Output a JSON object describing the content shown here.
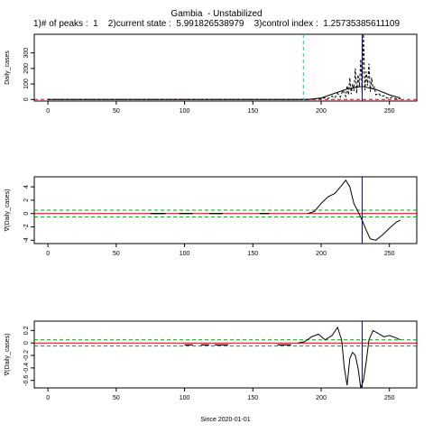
{
  "header": {
    "title": "Gambia  - Unstabilized",
    "subtitle": "1)# of peaks :  1    2)current state :  5.991826538979    3)control index :  1.25735385611109"
  },
  "colors": {
    "axis": "#000000",
    "threshold_cyan": "#00ced1",
    "current_blue": "#00008b",
    "band_green": "#00a000",
    "zero_red": "#d00000",
    "series": "#000000"
  },
  "chart_data": [
    {
      "type": "line",
      "name": "daily-cases",
      "xlabel": "",
      "ylabel": "Daily_cases",
      "xlim": [
        -10,
        270
      ],
      "ylim": [
        -10,
        420
      ],
      "xticks": [
        0,
        50,
        100,
        150,
        200,
        250
      ],
      "yticks": [
        0,
        100,
        200,
        300
      ],
      "vlines": [
        {
          "x": 187,
          "style": "dashed",
          "color": "cyan"
        },
        {
          "x": 230,
          "style": "solid",
          "color": "blue"
        }
      ],
      "hlines": [
        {
          "y": 0,
          "style": "dashed",
          "color": "red"
        }
      ],
      "series": [
        {
          "style": "dashed",
          "x": [
            0,
            100,
            190,
            195,
            198,
            200,
            203,
            205,
            208,
            210,
            212,
            214,
            216,
            218,
            219,
            220,
            221,
            222,
            223,
            224,
            225,
            226,
            227,
            228,
            229,
            230,
            231,
            232,
            233,
            234,
            235,
            236,
            237,
            238,
            239,
            240,
            242,
            244,
            246,
            248,
            250,
            252,
            255,
            258
          ],
          "y": [
            0,
            0,
            0,
            2,
            5,
            3,
            12,
            6,
            22,
            10,
            40,
            15,
            60,
            20,
            90,
            30,
            140,
            35,
            100,
            55,
            200,
            40,
            160,
            80,
            260,
            50,
            420,
            60,
            180,
            90,
            230,
            50,
            140,
            70,
            80,
            30,
            40,
            20,
            25,
            10,
            8,
            15,
            5,
            3
          ]
        },
        {
          "style": "solid",
          "x": [
            0,
            190,
            200,
            210,
            220,
            230,
            240,
            250,
            258
          ],
          "y": [
            0,
            0,
            10,
            40,
            70,
            85,
            65,
            30,
            10
          ]
        }
      ]
    },
    {
      "type": "line",
      "name": "first-derivative",
      "xlabel": "",
      "ylabel": "∇(Daily_cases)",
      "xlim": [
        -10,
        270
      ],
      "ylim": [
        -4.5,
        5.5
      ],
      "xticks": [
        0,
        50,
        100,
        150,
        200,
        250
      ],
      "yticks": [
        -4,
        -2,
        0,
        2,
        4
      ],
      "vlines": [
        {
          "x": 230,
          "style": "solid",
          "color": "blue"
        }
      ],
      "hlines": [
        {
          "y": 0,
          "style": "solid",
          "color": "red"
        },
        {
          "y": 0.5,
          "style": "dashed",
          "color": "green"
        },
        {
          "y": -0.5,
          "style": "dashed",
          "color": "green"
        }
      ],
      "series": [
        {
          "style": "solid",
          "x": [
            190,
            195,
            200,
            205,
            210,
            215,
            218,
            221,
            224,
            227,
            230,
            233,
            236,
            240,
            245,
            250,
            255,
            258
          ],
          "y": [
            0,
            0.3,
            1.5,
            2.5,
            3.0,
            4.2,
            5.0,
            4.0,
            1.5,
            0.3,
            -1.0,
            -2.5,
            -3.8,
            -4.0,
            -3.2,
            -2.2,
            -1.3,
            -1.0
          ]
        },
        {
          "style": "segments",
          "segments": [
            [
              75,
              86
            ],
            [
              96,
              106
            ],
            [
              118,
              128
            ],
            [
              155,
              162
            ]
          ],
          "y": 0
        }
      ]
    },
    {
      "type": "line",
      "name": "second-derivative",
      "xlabel": "Since 2020-01-01",
      "ylabel": "∇(Daily_cases)",
      "xlim": [
        -10,
        270
      ],
      "ylim": [
        -0.72,
        0.35
      ],
      "xticks": [
        0,
        50,
        100,
        150,
        200,
        250
      ],
      "yticks": [
        -0.6,
        -0.4,
        -0.2,
        0,
        0.2
      ],
      "vlines": [
        {
          "x": 230,
          "style": "solid",
          "color": "blue"
        }
      ],
      "hlines": [
        {
          "y": 0,
          "style": "solid",
          "color": "red"
        },
        {
          "y": 0.05,
          "style": "dashed",
          "color": "green"
        },
        {
          "y": -0.05,
          "style": "dashed",
          "color": "green"
        }
      ],
      "series": [
        {
          "style": "solid",
          "x": [
            183,
            188,
            193,
            198,
            203,
            208,
            212,
            215,
            217,
            219,
            221,
            223,
            225,
            227,
            229,
            231,
            233,
            235,
            238,
            242,
            246,
            250,
            255,
            258
          ],
          "y": [
            0,
            0.02,
            0.1,
            0.14,
            0.05,
            0.12,
            0.25,
            0.05,
            -0.4,
            -0.68,
            -0.25,
            -0.15,
            -0.2,
            -0.4,
            -0.72,
            -0.6,
            -0.3,
            0.05,
            0.2,
            0.15,
            0.1,
            0.12,
            0.08,
            0.05
          ]
        },
        {
          "style": "segments",
          "segments": [
            [
              100,
              106
            ],
            [
              112,
              118
            ],
            [
              122,
              132
            ],
            [
              168,
              178
            ]
          ],
          "y": -0.03
        }
      ]
    }
  ]
}
